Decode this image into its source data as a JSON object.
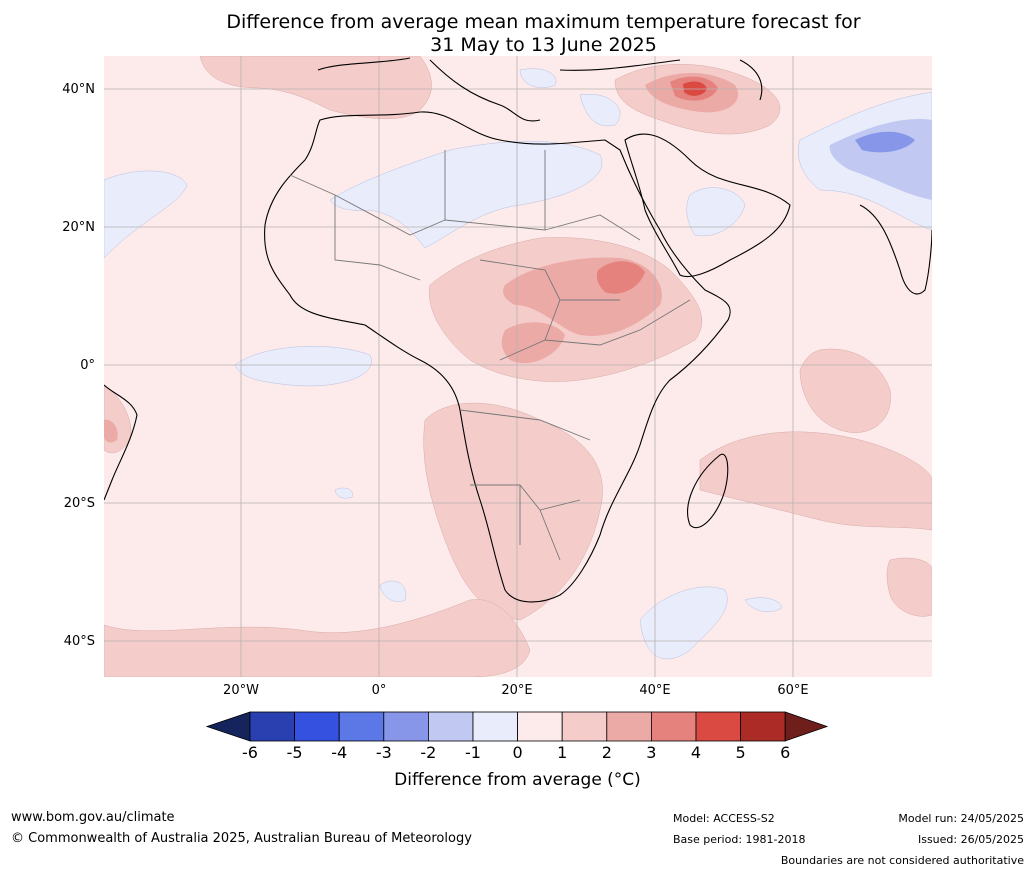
{
  "title": {
    "line1": "Difference from average mean maximum temperature forecast for",
    "line2": "31 May to 13 June 2025"
  },
  "axes": {
    "lat_labels": [
      "40°N",
      "20°N",
      "0°",
      "20°S",
      "40°S"
    ],
    "lon_labels": [
      "20°W",
      "0°",
      "20°E",
      "40°E",
      "60°E"
    ]
  },
  "colorbar": {
    "ticks": [
      "-6",
      "-5",
      "-4",
      "-3",
      "-2",
      "-1",
      "0",
      "1",
      "2",
      "3",
      "4",
      "5",
      "6"
    ],
    "title": "Difference from average (°C)",
    "colors": [
      "#16245e",
      "#2a3fb0",
      "#3451e0",
      "#5b78e6",
      "#8796e9",
      "#c1c8f2",
      "#e8ecfb",
      "#fcebea",
      "#f4cdcb",
      "#ecaaa7",
      "#e5827d",
      "#da4a42",
      "#ad2b26",
      "#6e1f1b"
    ]
  },
  "footer": {
    "url": "www.bom.gov.au/climate",
    "copyright": "© Commonwealth of Australia 2025, Australian Bureau of Meteorology",
    "model": "Model: ACCESS-S2",
    "base_period": "Base period: 1981-2018",
    "model_run": "Model run: 24/05/2025",
    "issued": "Issued: 26/05/2025",
    "disclaimer": "Boundaries are not considered authoritative"
  }
}
